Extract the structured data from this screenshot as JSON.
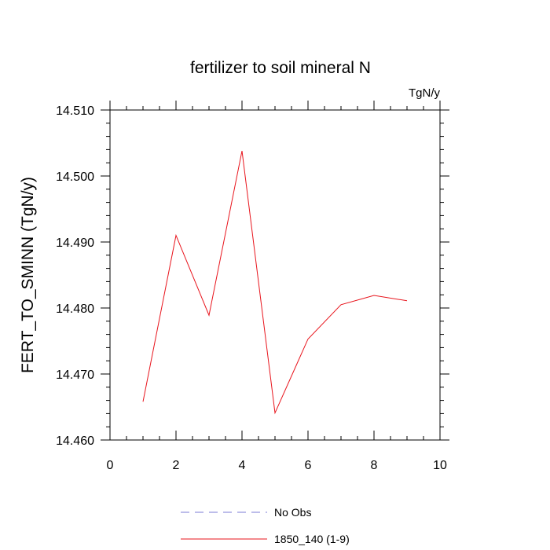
{
  "chart_data": {
    "type": "line",
    "title": "fertilizer to soil mineral N",
    "units_label": "TgN/y",
    "ylabel": "FERT_TO_SMINN  (TgN/y)",
    "xlabel": "",
    "xlim": [
      0,
      10
    ],
    "ylim": [
      14.46,
      14.51
    ],
    "x_ticks": [
      0,
      2,
      4,
      6,
      8,
      10
    ],
    "x_tick_labels": [
      "0",
      "2",
      "4",
      "6",
      "8",
      "10"
    ],
    "y_ticks": [
      14.46,
      14.47,
      14.48,
      14.49,
      14.5,
      14.51
    ],
    "y_tick_labels": [
      "14.460",
      "14.470",
      "14.480",
      "14.490",
      "14.500",
      "14.510"
    ],
    "grid": false,
    "legend_position": "bottom-center",
    "series": [
      {
        "name": "1850_140 (1-9)",
        "color": "#e8141c",
        "style": "solid",
        "x": [
          1,
          2,
          3,
          4,
          5,
          6,
          7,
          8,
          9
        ],
        "y": [
          14.4658,
          14.491,
          14.4789,
          14.5038,
          14.4641,
          14.4753,
          14.4805,
          14.4819,
          14.4811
        ]
      }
    ],
    "legend": [
      {
        "label": "No Obs",
        "color": "#7b7bd6",
        "style": "dashed"
      },
      {
        "label": "1850_140 (1-9)",
        "color": "#e8141c",
        "style": "solid"
      }
    ]
  }
}
